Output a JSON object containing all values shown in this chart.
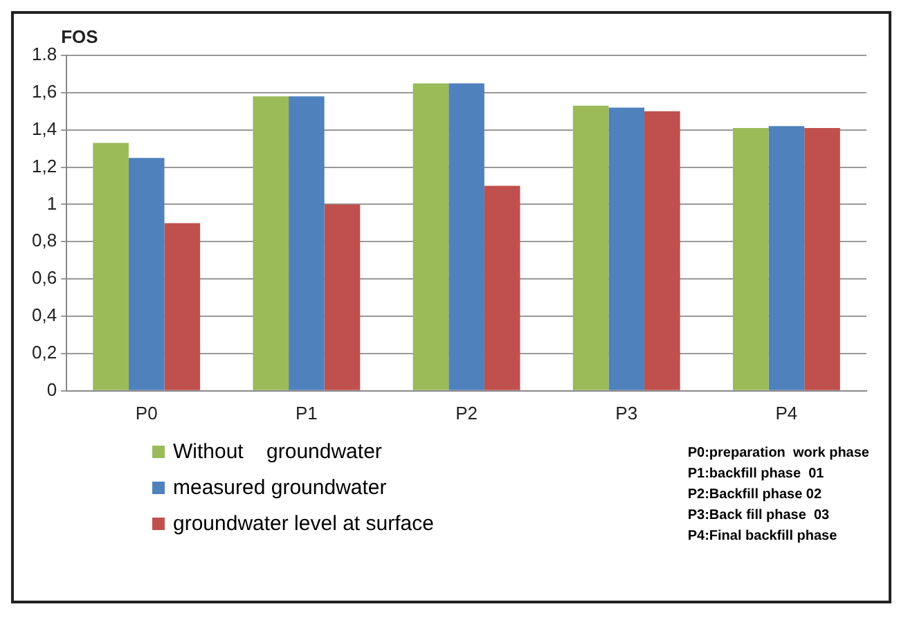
{
  "chart_data": {
    "type": "bar",
    "ylabel": "FOS",
    "categories": [
      "P0",
      "P1",
      "P2",
      "P3",
      "P4"
    ],
    "series": [
      {
        "name": "Without    groundwater",
        "color": "#9bbb59",
        "values": [
          1.33,
          1.58,
          1.65,
          1.53,
          1.41
        ]
      },
      {
        "name": "measured groundwater",
        "color": "#4f81bd",
        "values": [
          1.25,
          1.58,
          1.65,
          1.52,
          1.42
        ]
      },
      {
        "name": "groundwater level at surface",
        "color": "#c0504d",
        "values": [
          0.9,
          1.0,
          1.1,
          1.5,
          1.41
        ]
      }
    ],
    "ylim": [
      0,
      1.8
    ],
    "yticks": [
      0,
      {
        "value": 0.2,
        "label": "0,2"
      },
      {
        "value": 0.4,
        "label": "0,4"
      },
      {
        "value": 0.6,
        "label": "0,6"
      },
      {
        "value": 0.8,
        "label": "0,8"
      },
      1,
      {
        "value": 1.2,
        "label": "1,2"
      },
      {
        "value": 1.4,
        "label": "1,4"
      },
      {
        "value": 1.6,
        "label": "1,6"
      },
      1.8
    ],
    "grid": "y",
    "legend": "bottom left",
    "annotations": [
      "P0:preparation  work phase",
      "P1:backfill phase  01",
      "P2:Backfill phase 02",
      "P3:Back fill phase  03",
      "P4:Final backfill phase"
    ]
  }
}
